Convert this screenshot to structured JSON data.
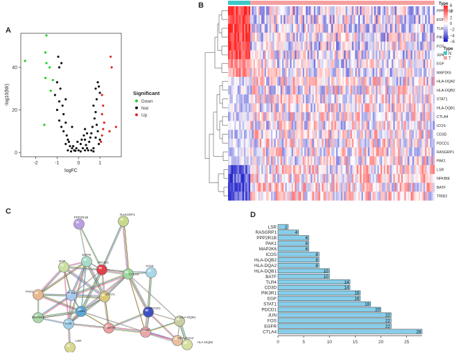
{
  "panels": {
    "a": "A",
    "b": "B",
    "c": "C",
    "d": "D"
  },
  "chart_data": [
    {
      "type": "scatter",
      "panel": "A",
      "title": "",
      "xlabel": "logFC",
      "ylabel": "-log10(fdr)",
      "xlim": [
        -2.7,
        2.0
      ],
      "ylim": [
        -2,
        56
      ],
      "xticks": [
        "-2",
        "-1",
        "0",
        "1"
      ],
      "yticks": [
        "0",
        "20",
        "40"
      ],
      "legend": {
        "title": "Significant",
        "placement": "right",
        "entries": [
          {
            "label": "Down",
            "color": "#22cc22"
          },
          {
            "label": "Not",
            "color": "#111111"
          },
          {
            "label": "Up",
            "color": "#dd2222"
          }
        ]
      },
      "series": [
        {
          "name": "Down",
          "color": "#22cc22",
          "points": [
            [
              -2.5,
              43
            ],
            [
              -1.5,
              55
            ],
            [
              -1.55,
              47
            ],
            [
              -1.5,
              42
            ],
            [
              -1.35,
              40
            ],
            [
              -1.55,
              35
            ],
            [
              -1.2,
              34
            ],
            [
              -1.3,
              29
            ],
            [
              -1.6,
              13
            ]
          ]
        },
        {
          "name": "Not",
          "color": "#111111",
          "points": [
            [
              -0.95,
              45
            ],
            [
              -0.9,
              40
            ],
            [
              -0.8,
              42
            ],
            [
              -1.0,
              33
            ],
            [
              -0.85,
              30
            ],
            [
              -1.1,
              27
            ],
            [
              -0.9,
              24
            ],
            [
              -0.75,
              22
            ],
            [
              -1.0,
              20
            ],
            [
              -0.7,
              18
            ],
            [
              -0.9,
              15
            ],
            [
              -0.6,
              14
            ],
            [
              -0.8,
              12
            ],
            [
              -0.7,
              10
            ],
            [
              -0.55,
              8
            ],
            [
              -0.5,
              6
            ],
            [
              -0.45,
              5
            ],
            [
              -0.6,
              4
            ],
            [
              -0.4,
              3
            ],
            [
              -0.3,
              2
            ],
            [
              -0.5,
              1
            ],
            [
              -0.2,
              1
            ],
            [
              -0.35,
              0.5
            ],
            [
              -0.1,
              2
            ],
            [
              0.0,
              1
            ],
            [
              0.1,
              0.5
            ],
            [
              -0.25,
              3
            ],
            [
              0.2,
              2
            ],
            [
              -0.15,
              0.8
            ],
            [
              0.3,
              1
            ],
            [
              0.4,
              2
            ],
            [
              0.35,
              3.5
            ],
            [
              0.5,
              5
            ],
            [
              0.55,
              7
            ],
            [
              0.6,
              9
            ],
            [
              0.3,
              6
            ],
            [
              0.25,
              8
            ],
            [
              0.1,
              4
            ],
            [
              0.45,
              1
            ],
            [
              0.7,
              0.5
            ],
            [
              0.15,
              6
            ],
            [
              0.4,
              9
            ],
            [
              0.9,
              33
            ],
            [
              0.95,
              31
            ],
            [
              0.8,
              30
            ],
            [
              1.0,
              28
            ],
            [
              0.85,
              25
            ],
            [
              0.7,
              22
            ],
            [
              0.8,
              19
            ],
            [
              0.75,
              16
            ],
            [
              0.85,
              13
            ],
            [
              0.9,
              10
            ],
            [
              0.8,
              7
            ],
            [
              0.95,
              4
            ],
            [
              0.7,
              2
            ],
            [
              0.6,
              1
            ],
            [
              1.0,
              6
            ],
            [
              0.65,
              12
            ],
            [
              -0.05,
              5
            ],
            [
              -0.6,
              25
            ],
            [
              -0.3,
              12
            ],
            [
              0.3,
              11
            ]
          ]
        },
        {
          "name": "Up",
          "color": "#dd2222",
          "points": [
            [
              1.5,
              45
            ],
            [
              1.55,
              40
            ],
            [
              1.1,
              27
            ],
            [
              1.15,
              22
            ],
            [
              1.1,
              18
            ],
            [
              1.2,
              14
            ],
            [
              1.15,
              11
            ],
            [
              1.1,
              8
            ],
            [
              1.05,
              5
            ],
            [
              1.45,
              10
            ],
            [
              1.75,
              12
            ]
          ]
        }
      ]
    },
    {
      "type": "heatmap",
      "panel": "B",
      "genes": [
        "PPP2R1B",
        "EGFR",
        "TLR4",
        "PIK3R1",
        "FOS",
        "JUN",
        "EGF",
        "MAP2K6",
        "HLA-DQA2",
        "HLA-DQB2",
        "STAT1",
        "HLA-DQB1",
        "CTLA4",
        "ICOS",
        "CD3D",
        "PDCD1",
        "RASGRP1",
        "PAK1",
        "LSR",
        "NFKBIE",
        "BATF",
        "TRIB3"
      ],
      "groups": [
        {
          "label": "N",
          "color": "#3cc8c8"
        },
        {
          "label": "T",
          "color": "#f4a0a0"
        }
      ],
      "group_legend_title": "Type",
      "annotation_label": "Type",
      "color_scale": {
        "min": -6,
        "max": 6,
        "low": "#1515c8",
        "mid": "#ffffff",
        "high": "#e01515",
        "ticks": [
          "6",
          "4",
          "2",
          "0",
          "−2",
          "−4",
          "−6"
        ]
      },
      "normal_fraction": 0.11,
      "normal_row_means": [
        5,
        5,
        5,
        5,
        5,
        5,
        3,
        3,
        -1,
        -1,
        -1,
        -1,
        -1,
        -1,
        -1,
        -1,
        -1,
        -1,
        -4,
        -4,
        -4,
        -4
      ],
      "tumor_row_means": [
        -0.6,
        -0.6,
        -0.6,
        -0.6,
        -0.6,
        -0.6,
        -0.4,
        -0.4,
        0.1,
        0.1,
        0.1,
        0.1,
        0.1,
        0.1,
        0.1,
        0.1,
        0.1,
        0.1,
        0.5,
        0.5,
        0.5,
        0.5
      ]
    },
    {
      "type": "network",
      "panel": "C",
      "nodes": [
        {
          "id": "PPP2R1B",
          "color": "#b8a0e0"
        },
        {
          "id": "RASGRP1",
          "color": "#c8d88a"
        },
        {
          "id": "EGFR",
          "color": "#a8dcc8"
        },
        {
          "id": "PIK3R1",
          "color": "#e0404a"
        },
        {
          "id": "ICOS",
          "color": "#a8d8e8"
        },
        {
          "id": "EGF",
          "color": "#c8e0a0"
        },
        {
          "id": "CTLA4",
          "color": "#9ed89e"
        },
        {
          "id": "PAK1",
          "color": "#e8b890"
        },
        {
          "id": "TLR4",
          "color": "#a8c8f0"
        },
        {
          "id": "STAT1",
          "color": "#d8c878"
        },
        {
          "id": "PDCD1",
          "color": "#4050c0"
        },
        {
          "id": "HLA-DQB1",
          "color": "#c8d0a0"
        },
        {
          "id": "MAP2K6",
          "color": "#a8d8a8"
        },
        {
          "id": "JUN",
          "color": "#5aa8d8"
        },
        {
          "id": "FOS",
          "color": "#a0d0e8"
        },
        {
          "id": "BATF",
          "color": "#e8a0a0"
        },
        {
          "id": "CD3D",
          "color": "#e8a8a8"
        },
        {
          "id": "HLA-DQB2",
          "color": "#d8e0a0"
        },
        {
          "id": "HLA-DQA2",
          "color": "#e8c0a0"
        },
        {
          "id": "LSR",
          "color": "#d8d890"
        }
      ],
      "edges": [
        [
          "PPP2R1B",
          "EGFR"
        ],
        [
          "PPP2R1B",
          "PIK3R1"
        ],
        [
          "RASGRP1",
          "PIK3R1"
        ],
        [
          "RASGRP1",
          "CTLA4"
        ],
        [
          "EGFR",
          "PIK3R1"
        ],
        [
          "EGFR",
          "EGF"
        ],
        [
          "EGFR",
          "TLR4"
        ],
        [
          "EGFR",
          "STAT1"
        ],
        [
          "EGFR",
          "JUN"
        ],
        [
          "EGFR",
          "FOS"
        ],
        [
          "EGFR",
          "PAK1"
        ],
        [
          "PIK3R1",
          "CTLA4"
        ],
        [
          "PIK3R1",
          "TLR4"
        ],
        [
          "PIK3R1",
          "STAT1"
        ],
        [
          "PIK3R1",
          "EGF"
        ],
        [
          "PIK3R1",
          "JUN"
        ],
        [
          "PIK3R1",
          "ICOS"
        ],
        [
          "EGF",
          "TLR4"
        ],
        [
          "EGF",
          "PAK1"
        ],
        [
          "EGF",
          "STAT1"
        ],
        [
          "EGF",
          "FOS"
        ],
        [
          "ICOS",
          "CTLA4"
        ],
        [
          "ICOS",
          "PDCD1"
        ],
        [
          "CTLA4",
          "PDCD1"
        ],
        [
          "CTLA4",
          "CD3D"
        ],
        [
          "CTLA4",
          "STAT1"
        ],
        [
          "CTLA4",
          "JUN"
        ],
        [
          "CTLA4",
          "TLR4"
        ],
        [
          "CTLA4",
          "HLA-DQB1"
        ],
        [
          "PAK1",
          "MAP2K6"
        ],
        [
          "PAK1",
          "TLR4"
        ],
        [
          "PAK1",
          "JUN"
        ],
        [
          "TLR4",
          "JUN"
        ],
        [
          "TLR4",
          "FOS"
        ],
        [
          "TLR4",
          "MAP2K6"
        ],
        [
          "TLR4",
          "STAT1"
        ],
        [
          "STAT1",
          "JUN"
        ],
        [
          "STAT1",
          "FOS"
        ],
        [
          "STAT1",
          "BATF"
        ],
        [
          "PDCD1",
          "CD3D"
        ],
        [
          "PDCD1",
          "HLA-DQB1"
        ],
        [
          "PDCD1",
          "HLA-DQA2"
        ],
        [
          "PDCD1",
          "BATF"
        ],
        [
          "HLA-DQB1",
          "HLA-DQB2"
        ],
        [
          "HLA-DQB1",
          "HLA-DQA2"
        ],
        [
          "HLA-DQB1",
          "CD3D"
        ],
        [
          "HLA-DQB2",
          "HLA-DQA2"
        ],
        [
          "HLA-DQB2",
          "CD3D"
        ],
        [
          "HLA-DQA2",
          "CD3D"
        ],
        [
          "MAP2K6",
          "FOS"
        ],
        [
          "MAP2K6",
          "JUN"
        ],
        [
          "JUN",
          "FOS"
        ],
        [
          "JUN",
          "BATF"
        ],
        [
          "FOS",
          "BATF"
        ],
        [
          "FOS",
          "LSR"
        ],
        [
          "BATF",
          "CD3D"
        ],
        [
          "JUN",
          "CD3D"
        ]
      ]
    },
    {
      "type": "bar",
      "panel": "D",
      "orientation": "horizontal",
      "categories": [
        "LSR",
        "RASGRP1",
        "PPP2R1B",
        "PAK1",
        "MAP2K6",
        "ICOS",
        "HLA-DQB2",
        "HLA-DQA2",
        "HLA-DQB1",
        "BATF",
        "TLR4",
        "CD3D",
        "PIK3R1",
        "EGF",
        "STAT1",
        "PDCD1",
        "JUN",
        "FOS",
        "EGFR",
        "CTLA4"
      ],
      "values": [
        2,
        4,
        6,
        6,
        6,
        8,
        8,
        8,
        10,
        10,
        14,
        14,
        16,
        16,
        18,
        20,
        22,
        22,
        22,
        28
      ],
      "labels": [
        "2",
        "4",
        "6",
        "6",
        "6",
        "8",
        "8",
        "8",
        "10",
        "10",
        "14",
        "14",
        "16",
        "16",
        "18",
        "20",
        "22",
        "22",
        "22",
        "28"
      ],
      "color": "#87ceeb",
      "xlim": [
        0,
        28
      ],
      "xticks": [
        "0",
        "5",
        "10",
        "15",
        "20",
        "25"
      ],
      "xlabel": "",
      "ylabel": "",
      "title": ""
    }
  ]
}
